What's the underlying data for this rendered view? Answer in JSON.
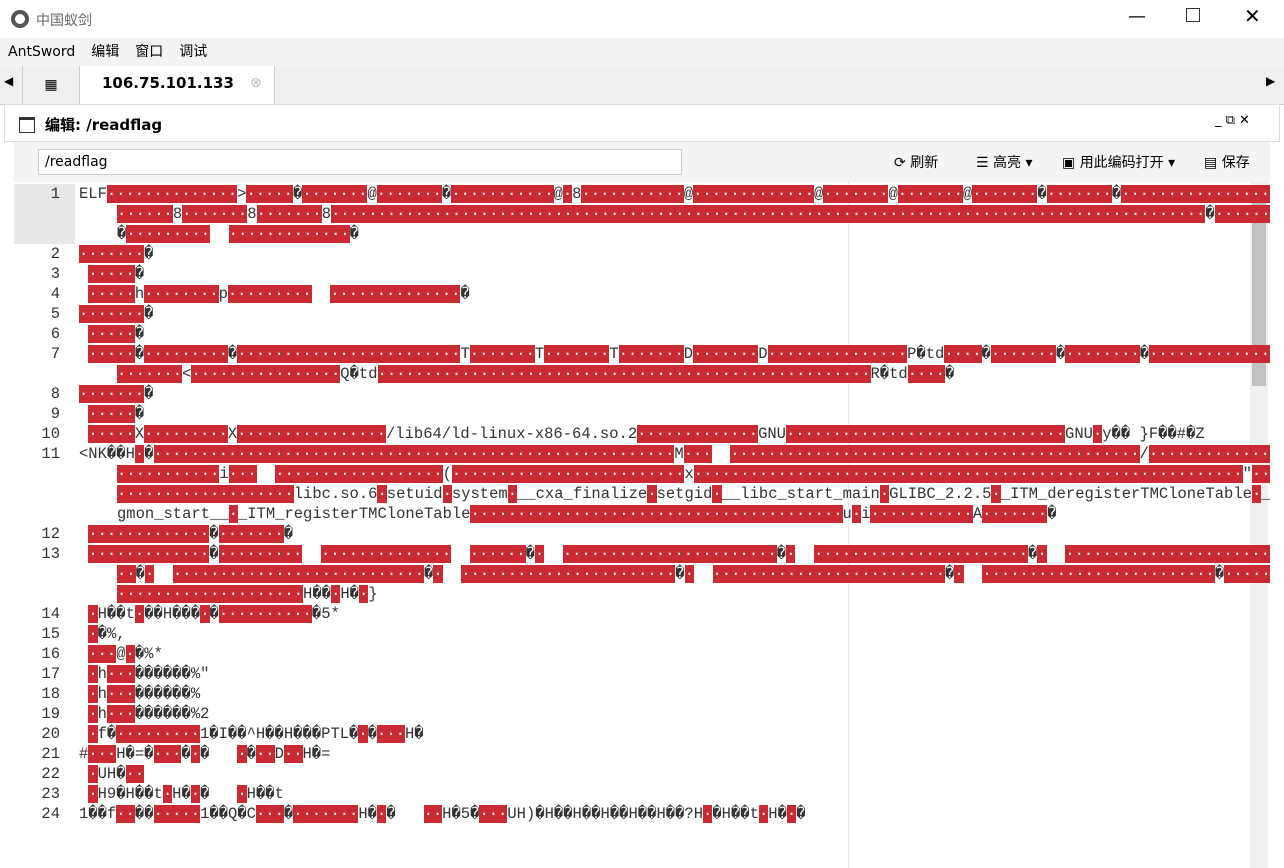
{
  "window": {
    "title": "中国蚁剑"
  },
  "menu": [
    "AntSword",
    "编辑",
    "窗口",
    "调试"
  ],
  "tab": {
    "label": "106.75.101.133"
  },
  "panel": {
    "title": "编辑: /readflag"
  },
  "toolbar": {
    "path": "/readflag",
    "refresh": "刷新",
    "highlight": "高亮",
    "open_with": "用此编码打开",
    "save": "保存"
  },
  "editor": {
    "lines": [
      {
        "number": 1,
        "text": "ELF··············>·····�·······@·······�···········@·8···········@·············@·······@·······@·······�·······�························8·······8·······8······························································································�·······�·········  ·············�"
      },
      {
        "number": 2,
        "text": "·······�"
      },
      {
        "number": 3,
        "text": " ·····�"
      },
      {
        "number": 4,
        "text": " ·····h········p·········  ··············�"
      },
      {
        "number": 5,
        "text": "·······�"
      },
      {
        "number": 6,
        "text": " ·····�"
      },
      {
        "number": 7,
        "text": " ·····�·········�························T·······T·······T·······D·······D···············P�td····�·······�········�··············<·······<················Q�td·····················································R�td····�"
      },
      {
        "number": 8,
        "text": "·······�"
      },
      {
        "number": 9,
        "text": " ·····�"
      },
      {
        "number": 10,
        "text": " ·····X·········X················/lib64/ld-linux-x86-64.so.2·············GNU······························GNU·y�� }F��#�Z"
      },
      {
        "number": 11,
        "text": "<NK��H·�························································M···  ············································/··························i···  ··················(·························x···························································\"······················libc.so.6·setuid·system·__cxa_finalize·setgid·__libc_start_main·GLIBC_2.2.5·_ITM_deregisterTMCloneTable·__gmon_start__·_ITM_registerTMCloneTable········································u·i···········A·······�"
      },
      {
        "number": 12,
        "text": " ·············�·······�"
      },
      {
        "number": 13,
        "text": " ·············�·········  ··············  ······�·  ·······················�·  ·······················�·  ··························�·  ···························�·  ·······················�·  ·························�·  ·························�··························H��·H�·}"
      },
      {
        "number": 14,
        "text": " ·H��t·��H���·�··········�5*"
      },
      {
        "number": 15,
        "text": " ·�%,"
      },
      {
        "number": 16,
        "text": " ···@·�%*"
      },
      {
        "number": 17,
        "text": " ·h···������%\""
      },
      {
        "number": 18,
        "text": " ·h···������%"
      },
      {
        "number": 19,
        "text": " ·h···������%2"
      },
      {
        "number": 20,
        "text": " ·f�·········1�I��^H��H���PTL�·�···H�"
      },
      {
        "number": 21,
        "text": "#···H�=�···�·�   ·�··D··H�="
      },
      {
        "number": 22,
        "text": " ·UH�··"
      },
      {
        "number": 23,
        "text": " ·H9�H��t·H�·�   ·H��t"
      },
      {
        "number": 24,
        "text": "1��f··��·····1��Q�C···�·······H�·�   ··H�5�···UH)�H��H��H��H��H��?H·�H��t·H�·�"
      }
    ]
  }
}
